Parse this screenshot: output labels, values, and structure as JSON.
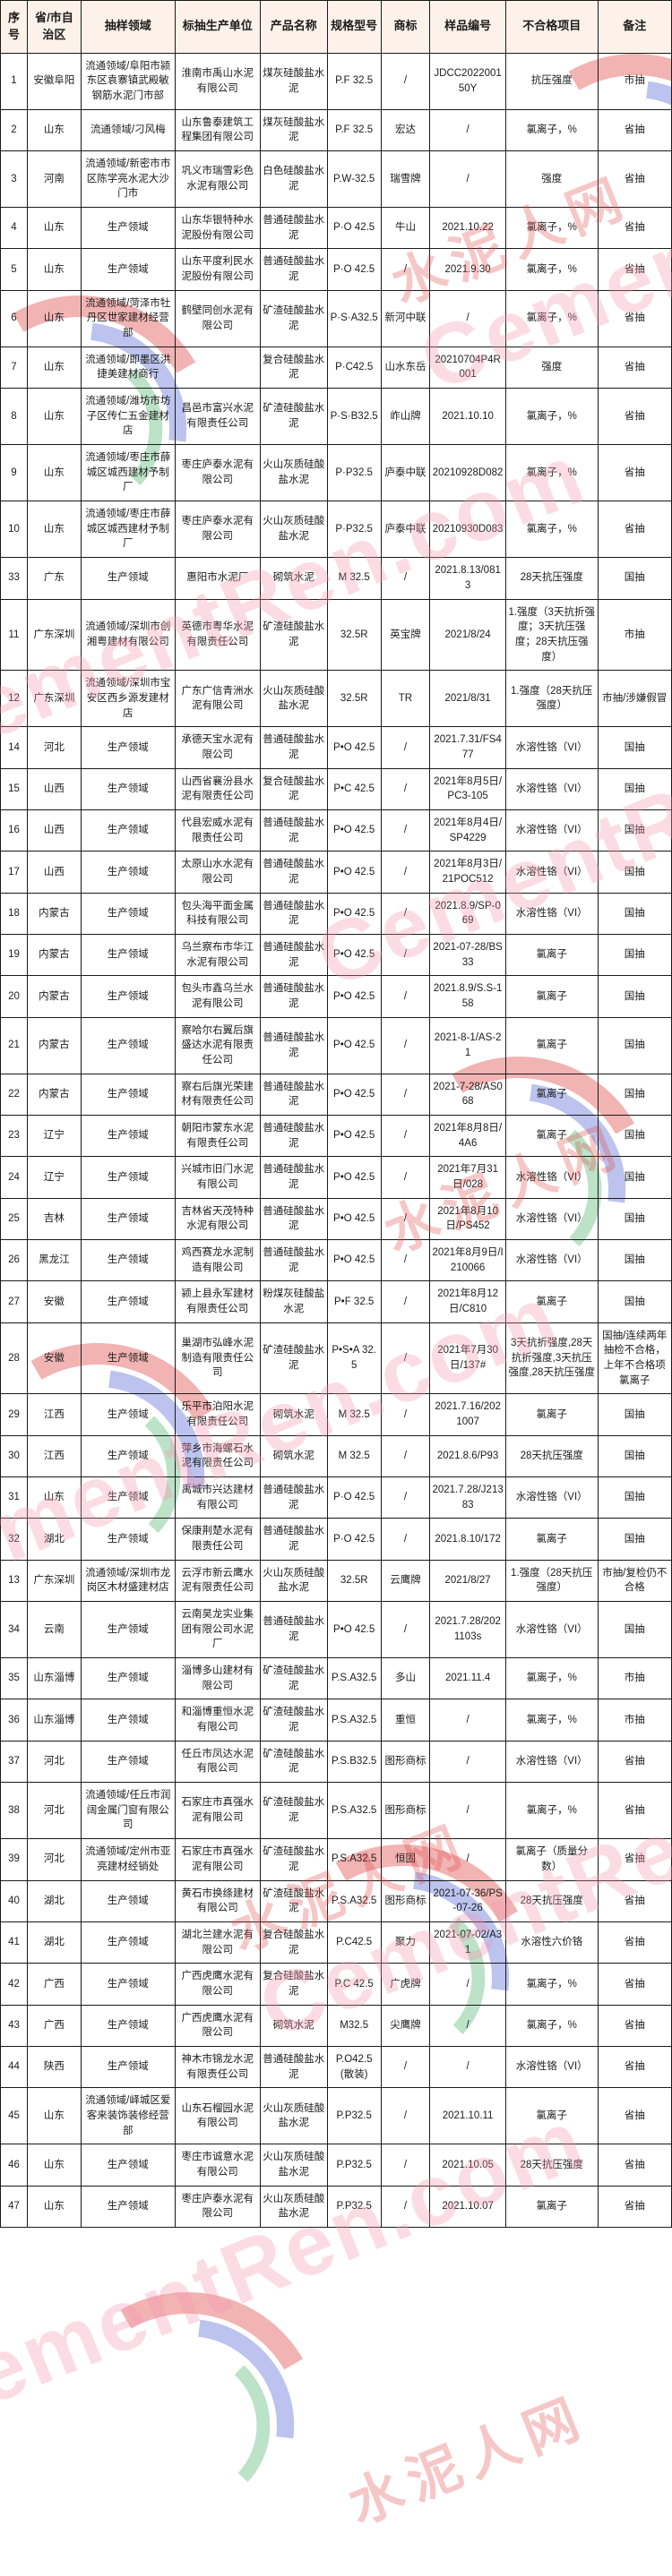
{
  "watermark": {
    "text_cn": "水泥人网",
    "text_en": "CementRen.com"
  },
  "table": {
    "columns": [
      "序号",
      "省/市自治区",
      "抽样领域",
      "标抽生产单位",
      "产品名称",
      "规格型号",
      "商标",
      "样品编号",
      "不合格项目",
      "备注"
    ],
    "rows": [
      [
        "1",
        "安徽阜阳",
        "流通领域/阜阳市颍东区袁寨镇武殿敏钢筋水泥门市部",
        "淮南市禹山水泥有限公司",
        "煤灰硅酸盐水泥",
        "P.F 32.5",
        "/",
        "JDCC202200150Y",
        "抗压强度",
        "市抽"
      ],
      [
        "2",
        "山东",
        "流通领域/刁风梅",
        "山东鲁泰建筑工程集团有限公司",
        "煤灰硅酸盐水泥",
        "P.F 32.5",
        "宏达",
        "/",
        "氯离子，%",
        "省抽"
      ],
      [
        "3",
        "河南",
        "流通领域/新密市市区陈学亮水泥大沙门市",
        "巩义市瑞雪彩色水泥有限公司",
        "白色硅酸盐水泥",
        "P.W-32.5",
        "瑞雪牌",
        "/",
        "强度",
        "省抽"
      ],
      [
        "4",
        "山东",
        "生产领域",
        "山东华银特种水泥股份有限公司",
        "普通硅酸盐水泥",
        "P·O 42.5",
        "牛山",
        "2021.10.22",
        "氯离子，%",
        "省抽"
      ],
      [
        "5",
        "山东",
        "生产领域",
        "山东平度利民水泥股份有限公司",
        "普通硅酸盐水泥",
        "P·O 42.5",
        "/",
        "2021.9.30",
        "氯离子，%",
        "省抽"
      ],
      [
        "6",
        "山东",
        "流通领域/菏泽市牡丹区世家建材经营部",
        "鹤壁同创水泥有限公司",
        "矿渣硅酸盐水泥",
        "P·S·A32.5",
        "新河中联",
        "/",
        "氯离子，%",
        "省抽"
      ],
      [
        "7",
        "山东",
        "流通领域/即墨区洪捷美建材商行",
        "",
        "复合硅酸盐水泥",
        "P·C42.5",
        "山水东岳",
        "20210704P4R001",
        "强度",
        "省抽"
      ],
      [
        "8",
        "山东",
        "流通领域/潍坊市坊子区传仁五金建材店",
        "昌邑市富兴水泥有限责任公司",
        "矿渣硅酸盐水泥",
        "P·S·B32.5",
        "岞山牌",
        "2021.10.10",
        "氯离子，%",
        "省抽"
      ],
      [
        "9",
        "山东",
        "流通领域/枣庄市薛城区城西建材予制厂",
        "枣庄庐泰水泥有限公司",
        "火山灰质硅酸盐水泥",
        "P·P32.5",
        "庐泰中联",
        "20210928D082",
        "氯离子，%",
        "省抽"
      ],
      [
        "10",
        "山东",
        "流通领域/枣庄市薛城区城西建材予制厂",
        "枣庄庐泰水泥有限公司",
        "火山灰质硅酸盐水泥",
        "P·P32.5",
        "庐泰中联",
        "20210930D083",
        "氯离子，%",
        "省抽"
      ],
      [
        "33",
        "广东",
        "生产领域",
        "惠阳市水泥厂",
        "砌筑水泥",
        "M 32.5",
        "/",
        "2021.8.13/0813",
        "28天抗压强度",
        "国抽"
      ],
      [
        "11",
        "广东深圳",
        "流通领域/深圳市创湘粤建材有限公司",
        "英德市粤华水泥有限责任公司",
        "矿渣硅酸盐水泥",
        "32.5R",
        "英宝牌",
        "2021/8/24",
        "1.强度（3天抗折强度；3天抗压强度；28天抗压强度）",
        "市抽"
      ],
      [
        "12",
        "广东深圳",
        "流通领域/深圳市宝安区西乡源发建材店",
        "广东广信青洲水泥有限公司",
        "火山灰质硅酸盐水泥",
        "32.5R",
        "TR",
        "2021/8/31",
        "1.强度（28天抗压强度）",
        "市抽/涉嫌假冒"
      ],
      [
        "14",
        "河北",
        "生产领域",
        "承德天宝水泥有限公司",
        "普通硅酸盐水泥",
        "P•O 42.5",
        "/",
        "2021.7.31/FS477",
        "水溶性铬（VI）",
        "国抽"
      ],
      [
        "15",
        "山西",
        "生产领域",
        "山西省襄汾县水泥有限责任公司",
        "复合硅酸盐水泥",
        "P•C 42.5",
        "/",
        "2021年8月5日/PC3-105",
        "水溶性铬（VI）",
        "国抽"
      ],
      [
        "16",
        "山西",
        "生产领域",
        "代县宏威水泥有限责任公司",
        "普通硅酸盐水泥",
        "P•O 42.5",
        "/",
        "2021年8月4日/SP4229",
        "水溶性铬（VI）",
        "国抽"
      ],
      [
        "17",
        "山西",
        "生产领域",
        "太原山水水泥有限公司",
        "普通硅酸盐水泥",
        "P•O 42.5",
        "/",
        "2021年8月3日/21POC512",
        "水溶性铬（VI）",
        "国抽"
      ],
      [
        "18",
        "内蒙古",
        "生产领域",
        "包头海平面金属科技有限公司",
        "普通硅酸盐水泥",
        "P•O 42.5",
        "/",
        "2021.8.9/SP-069",
        "水溶性铬（VI）",
        "国抽"
      ],
      [
        "19",
        "内蒙古",
        "生产领域",
        "乌兰察布市华江水泥有限公司",
        "普通硅酸盐水泥",
        "P•O 42.5",
        "/",
        "2021-07-28/BS33",
        "氯离子",
        "国抽"
      ],
      [
        "20",
        "内蒙古",
        "生产领域",
        "包头市鑫乌兰水泥有限公司",
        "普通硅酸盐水泥",
        "P•O 42.5",
        "/",
        "2021.8.9/S.S-158",
        "氯离子",
        "国抽"
      ],
      [
        "21",
        "内蒙古",
        "生产领域",
        "察哈尔右翼后旗盛达水泥有限责任公司",
        "普通硅酸盐水泥",
        "P•O 42.5",
        "/",
        "2021-8-1/AS-21",
        "氯离子",
        "国抽"
      ],
      [
        "22",
        "内蒙古",
        "生产领域",
        "察右后旗光荣建材有限责任公司",
        "普通硅酸盐水泥",
        "P•O 42.5",
        "/",
        "2021-7-28/AS068",
        "氯离子",
        "国抽"
      ],
      [
        "23",
        "辽宁",
        "生产领域",
        "朝阳市蒙东水泥有限责任公司",
        "普通硅酸盐水泥",
        "P•O 42.5",
        "/",
        "2021年8月8日/4A6",
        "氯离子",
        "国抽"
      ],
      [
        "24",
        "辽宁",
        "生产领域",
        "兴城市旧门水泥有限公司",
        "普通硅酸盐水泥",
        "P•O 42.5",
        "/",
        "2021年7月31日/028",
        "水溶性铬（VI）",
        "国抽"
      ],
      [
        "25",
        "吉林",
        "生产领域",
        "吉林省天茂特种水泥有限公司",
        "普通硅酸盐水泥",
        "P•O 42.5",
        "/",
        "2021年8月10日/PS452",
        "水溶性铬（VI）",
        "国抽"
      ],
      [
        "26",
        "黑龙江",
        "生产领域",
        "鸡西赛龙水泥制造有限公司",
        "普通硅酸盐水泥",
        "P•O 42.5",
        "/",
        "2021年8月9日/I 210066",
        "水溶性铬（VI）",
        "国抽"
      ],
      [
        "27",
        "安徽",
        "生产领域",
        "颍上县永军建材有限责任公司",
        "粉煤灰硅酸盐水泥",
        "P•F 32.5",
        "/",
        "2021年8月12日/C810",
        "氯离子",
        "国抽"
      ],
      [
        "28",
        "安徽",
        "生产领域",
        "巢湖市弘峰水泥制造有限责任公司",
        "矿渣硅酸盐水泥",
        "P•S•A 32.5",
        "/",
        "2021年7月30日/137#",
        "3天抗折强度,28天抗折强度,3天抗压强度,28天抗压强度",
        "国抽/连续两年抽检不合格，上年不合格项氯离子"
      ],
      [
        "29",
        "江西",
        "生产领域",
        "乐平市泊阳水泥有限责任公司",
        "砌筑水泥",
        "M 32.5",
        "/",
        "2021.7.16/2021007",
        "氯离子",
        "国抽"
      ],
      [
        "30",
        "江西",
        "生产领域",
        "萍乡市海螺石水泥有限责任公司",
        "砌筑水泥",
        "M 32.5",
        "/",
        "2021.8.6/P93",
        "28天抗压强度",
        "国抽"
      ],
      [
        "31",
        "山东",
        "生产领域",
        "禹城市兴达建材有限公司",
        "普通硅酸盐水泥",
        "P·O 42.5",
        "/",
        "2021.7.28/J21383",
        "水溶性铬（VI）",
        "国抽"
      ],
      [
        "32",
        "湖北",
        "生产领域",
        "保康荆楚水泥有限责任公司",
        "普通硅酸盐水泥",
        "P·O 42.5",
        "/",
        "2021.8.10/172",
        "氯离子",
        "国抽"
      ],
      [
        "13",
        "广东深圳",
        "流通领域/深圳市龙岗区木材盛建材店",
        "云浮市新云鹰水泥有限责任公司",
        "火山灰质硅酸盐水泥",
        "32.5R",
        "云鹰牌",
        "2021/8/27",
        "1.强度（28天抗压强度）",
        "市抽/复检仍不合格"
      ],
      [
        "34",
        "云南",
        "生产领域",
        "云南昊龙实业集团有限公司水泥厂",
        "普通硅酸盐水泥",
        "P•O 42.5",
        "/",
        "2021.7.28/2021103s",
        "水溶性铬（VI）",
        "国抽"
      ],
      [
        "35",
        "山东淄博",
        "生产领域",
        "淄博多山建材有限公司",
        "矿渣硅酸盐水泥",
        "P.S.A32.5",
        "多山",
        "2021.11.4",
        "氯离子，%",
        "市抽"
      ],
      [
        "36",
        "山东淄博",
        "生产领域",
        "和淄博重恒水泥有限公司",
        "矿渣硅酸盐水泥",
        "P.S.A32.5",
        "重恒",
        "/",
        "氯离子，%",
        "市抽"
      ],
      [
        "37",
        "河北",
        "生产领域",
        "任丘市凤达水泥有限公司",
        "矿渣硅酸盐水泥",
        "P.S.B32.5",
        "图形商标",
        "/",
        "水溶性铬（VI）",
        "省抽"
      ],
      [
        "38",
        "河北",
        "流通领域/任丘市润阔金属门窗有限公司",
        "石家庄市真强水泥有限公司",
        "矿渣硅酸盐水泥",
        "P.S.A32.5",
        "图形商标",
        "/",
        "氯离子，%",
        "省抽"
      ],
      [
        "39",
        "河北",
        "流通领域/定州市亚亮建材经销处",
        "石家庄市真强水泥有限公司",
        "矿渣硅酸盐水泥",
        "P.S.A32.5",
        "恒固",
        "/",
        "氯离子（质量分数）",
        "省抽"
      ],
      [
        "40",
        "湖北",
        "生产领域",
        "黄石市换绦建材有限公司",
        "矿渣硅酸盐水泥",
        "P.S.A32.5",
        "图形商标",
        "2021-07-36/PS-07-26",
        "28天抗压强度",
        "省抽"
      ],
      [
        "41",
        "湖北",
        "生产领域",
        "湖北兰建水泥有限公司",
        "复合硅酸盐水泥",
        "P.C42.5",
        "聚力",
        "2021-07-02/A31",
        "水溶性六价铬",
        "省抽"
      ],
      [
        "42",
        "广西",
        "生产领域",
        "广西虎鹰水泥有限公司",
        "复合硅酸盐水泥",
        "P.C 42.5",
        "广虎牌",
        "/",
        "氯离子，%",
        "省抽"
      ],
      [
        "43",
        "广西",
        "生产领域",
        "广西虎鹰水泥有限公司",
        "砌筑水泥",
        "M32.5",
        "尖鹰牌",
        "/",
        "氯离子，%",
        "省抽"
      ],
      [
        "44",
        "陕西",
        "生产领域",
        "神木市锦龙水泥有限责任公司",
        "普通硅酸盐水泥",
        "P.O42.5(散装)",
        "/",
        "/",
        "水溶性铬（VI）",
        "省抽"
      ],
      [
        "45",
        "山东",
        "流通领域/峄城区爱客来装饰装修经营部",
        "山东石榴园水泥有限公司",
        "火山灰质硅酸盐水泥",
        "P.P32.5",
        "/",
        "2021.10.11",
        "氯离子",
        "省抽"
      ],
      [
        "46",
        "山东",
        "生产领域",
        "枣庄市诚意水泥有限公司",
        "火山灰质硅酸盐水泥",
        "P.P32.5",
        "/",
        "2021.10.05",
        "28天抗压强度",
        "省抽"
      ],
      [
        "47",
        "山东",
        "生产领域",
        "枣庄庐泰水泥有限公司",
        "火山灰质硅酸盐水泥",
        "P.P32.5",
        "/",
        "2021.10.07",
        "氯离子",
        "省抽"
      ]
    ]
  }
}
